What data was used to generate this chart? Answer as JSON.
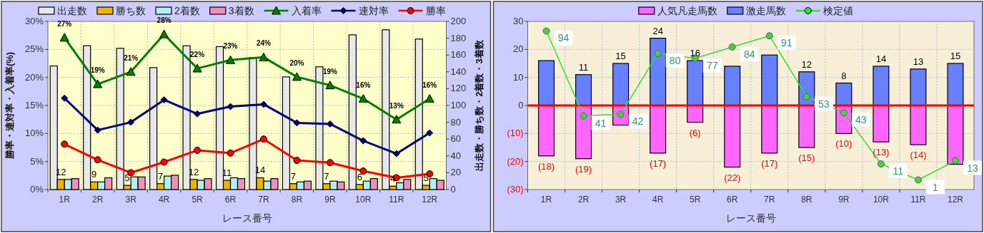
{
  "chart_data": [
    {
      "type": "bar",
      "categories": [
        "1R",
        "2R",
        "3R",
        "4R",
        "5R",
        "6R",
        "7R",
        "8R",
        "9R",
        "10R",
        "11R",
        "12R"
      ],
      "series": [
        {
          "name": "出走数",
          "color": "#e8e8e8",
          "axis": "y2",
          "values": [
            147,
            171,
            168,
            145,
            171,
            170,
            157,
            134,
            146,
            184,
            190,
            179
          ]
        },
        {
          "name": "勝ち数",
          "color": "#f0b400",
          "axis": "y2",
          "values": [
            12,
            9,
            5,
            7,
            12,
            11,
            14,
            7,
            7,
            6,
            4,
            5
          ],
          "value_labels": [
            "12",
            "9",
            "5",
            "7",
            "12",
            "11",
            "14",
            "7",
            "7",
            "6",
            "4",
            "5"
          ]
        },
        {
          "name": "2着数",
          "color": "#b0f0f0",
          "axis": "y2",
          "values": [
            12,
            9,
            15,
            16,
            11,
            14,
            10,
            9,
            10,
            10,
            8,
            13
          ]
        },
        {
          "name": "3着数",
          "color": "#f090c0",
          "axis": "y2",
          "values": [
            13,
            14,
            15,
            17,
            13,
            13,
            13,
            10,
            9,
            13,
            12,
            11
          ]
        },
        {
          "name": "入着率",
          "type": "line",
          "color": "#008000",
          "marker": "triangle",
          "values": [
            27.1,
            18.8,
            21.0,
            27.7,
            21.6,
            23.1,
            23.6,
            20.1,
            18.6,
            16.2,
            12.5,
            16.2
          ],
          "value_labels": [
            "27%",
            "19%",
            "21%",
            "28%",
            "22%",
            "23%",
            "24%",
            "20%",
            "19%",
            "16%",
            "13%",
            "16%"
          ]
        },
        {
          "name": "連対率",
          "type": "line",
          "color": "#000080",
          "marker": "diamond",
          "values": [
            16.3,
            10.6,
            12.0,
            16.0,
            13.5,
            14.8,
            15.2,
            11.9,
            11.7,
            8.7,
            6.4,
            10.1
          ]
        },
        {
          "name": "勝率",
          "type": "line",
          "color": "#ff0000",
          "marker": "circle",
          "values": [
            8.1,
            5.3,
            3.0,
            4.9,
            7.0,
            6.5,
            9.0,
            5.2,
            4.8,
            3.3,
            2.1,
            2.8
          ]
        }
      ],
      "ylim": [
        0,
        30
      ],
      "yticks": [
        {
          "value": 0,
          "label": "0%"
        },
        {
          "value": 5,
          "label": "5%"
        },
        {
          "value": 10,
          "label": "10%"
        },
        {
          "value": 15,
          "label": "15%"
        },
        {
          "value": 20,
          "label": "20%"
        },
        {
          "value": 25,
          "label": "25%"
        },
        {
          "value": 30,
          "label": "30%"
        }
      ],
      "y2lim": [
        0,
        200
      ],
      "y2ticks": [
        0,
        20,
        40,
        60,
        80,
        100,
        120,
        140,
        160,
        180,
        200
      ],
      "xlabel": "レース番号",
      "ylabel": "勝率・連対率・入着率(%)",
      "y2label": "出走数・勝ち数・2着数・3着数",
      "legend": "top",
      "grid": true
    },
    {
      "type": "bar",
      "stacked": true,
      "categories": [
        "1R",
        "2R",
        "3R",
        "4R",
        "5R",
        "6R",
        "7R",
        "8R",
        "9R",
        "10R",
        "11R",
        "12R"
      ],
      "series": [
        {
          "name": "人気凡走馬数",
          "color": "#ff66ff",
          "values": [
            -18,
            -19,
            -7,
            -17,
            -6,
            -22,
            -17,
            -15,
            -10,
            -13,
            -14,
            -21
          ],
          "value_labels": [
            "(18)",
            "(19)",
            null,
            "(17)",
            "(6)",
            "(22)",
            "(17)",
            "(15)",
            "(10)",
            "(13)",
            "(14)",
            null
          ]
        },
        {
          "name": "激走馬数",
          "color": "#6680ff",
          "values": [
            16,
            11,
            15,
            24,
            16,
            14,
            18,
            12,
            8,
            14,
            13,
            15
          ],
          "value_labels": [
            null,
            "11",
            "15",
            "24",
            "16",
            null,
            null,
            "12",
            "8",
            "14",
            "13",
            "15"
          ]
        },
        {
          "name": "検定値",
          "type": "line",
          "axis": "y2",
          "color": "#33dd33",
          "marker": "circle",
          "values": [
            94,
            41,
            42,
            80,
            77,
            84,
            91,
            53,
            43,
            11,
            1,
            13
          ],
          "value_labels": [
            "94",
            "41",
            "42",
            "80",
            "77",
            "84",
            "91",
            "53",
            "43",
            "11",
            "1",
            "13"
          ]
        }
      ],
      "ylim": [
        -30,
        30
      ],
      "y2lim": [
        -5,
        100
      ],
      "yticks": [
        {
          "value": -30,
          "label": "(30)"
        },
        {
          "value": -20,
          "label": "(20)"
        },
        {
          "value": -10,
          "label": "(10)"
        },
        0,
        10,
        20,
        30
      ],
      "ref_lines": [
        {
          "axis": "y",
          "value": 0,
          "color": "#ff0000"
        }
      ],
      "xlabel": "レース番号",
      "legend": "top",
      "grid": true
    }
  ]
}
